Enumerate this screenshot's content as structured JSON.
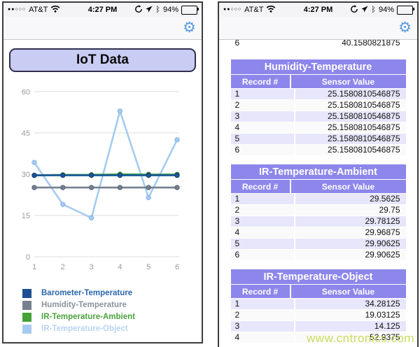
{
  "status_bar": {
    "signal_dots": "●●○○○",
    "carrier": "AT&T",
    "time": "4:27 PM",
    "battery_pct": "94%"
  },
  "left_phone": {
    "header_button": "IoT Data"
  },
  "chart_data": {
    "type": "line",
    "x": [
      1,
      2,
      3,
      4,
      5,
      6
    ],
    "xlabel": "",
    "ylabel": "",
    "ylim": [
      0,
      60
    ],
    "yticks": [
      0,
      15,
      30,
      45,
      60
    ],
    "grid": true,
    "legend_position": "bottom",
    "series": [
      {
        "name": "Barometer-Temperature",
        "color": "#1a579b",
        "dot": "#123e75",
        "values": [
          29.6,
          29.6,
          29.6,
          29.6,
          29.6,
          29.6
        ]
      },
      {
        "name": "Humidity-Temperature",
        "color": "#76818f",
        "dot": "#5d6876",
        "values": [
          25.158081,
          25.158081,
          25.158081,
          25.158081,
          25.158081,
          25.158081
        ]
      },
      {
        "name": "IR-Temperature-Ambient",
        "color": "#3fa13a",
        "dot": "#2f8030",
        "values": [
          29.5625,
          29.75,
          29.78125,
          29.96875,
          29.90625,
          29.90625
        ]
      },
      {
        "name": "IR-Temperature-Object",
        "color": "#a5cbf1",
        "dot": "#8cb9e8",
        "values": [
          34.28125,
          19.03125,
          14.125,
          52.9375,
          21.5,
          42.5
        ]
      }
    ],
    "legend": [
      {
        "label": "Barometer-Temperature",
        "swatch": "#1c4f92",
        "text": "#2b66ad"
      },
      {
        "label": "Humidity-Temperature",
        "swatch": "#76818f",
        "text": "#8a939e"
      },
      {
        "label": "IR-Temperature-Ambient",
        "swatch": "#44a237",
        "text": "#4ba33e"
      },
      {
        "label": "IR-Temperature-Object",
        "swatch": "#a6cbf1",
        "text": "#b9d4f3"
      }
    ]
  },
  "right_phone": {
    "partial_row": {
      "record": "6",
      "value": "40.1580821875"
    },
    "col_record": "Record #",
    "col_value": "Sensor Value",
    "tables": [
      {
        "title": "Humidity-Temperature",
        "rows": [
          [
            "1",
            "25.1580810546875"
          ],
          [
            "2",
            "25.1580810546875"
          ],
          [
            "3",
            "25.1580810546875"
          ],
          [
            "4",
            "25.1580810546875"
          ],
          [
            "5",
            "25.1580810546875"
          ],
          [
            "6",
            "25.1580810546875"
          ]
        ]
      },
      {
        "title": "IR-Temperature-Ambient",
        "rows": [
          [
            "1",
            "29.5625"
          ],
          [
            "2",
            "29.75"
          ],
          [
            "3",
            "29.78125"
          ],
          [
            "4",
            "29.96875"
          ],
          [
            "5",
            "29.90625"
          ],
          [
            "6",
            "29.90625"
          ]
        ]
      },
      {
        "title": "IR-Temperature-Object",
        "rows": [
          [
            "1",
            "34.28125"
          ],
          [
            "2",
            "19.03125"
          ],
          [
            "3",
            "14.125"
          ],
          [
            "4",
            "52.9375"
          ]
        ]
      }
    ],
    "watermark": "www.cntronics.com"
  },
  "colors": {
    "table_header": "#8d86eb",
    "row_odd": "#e7e6fa",
    "row_even": "#fafafa",
    "gear_blue": "#5b9bd8",
    "button_bg": "#c9cdf3",
    "gridline": "#dcdcdc",
    "axis_label": "#9a9a9a",
    "watermark": "#c9dc55"
  }
}
